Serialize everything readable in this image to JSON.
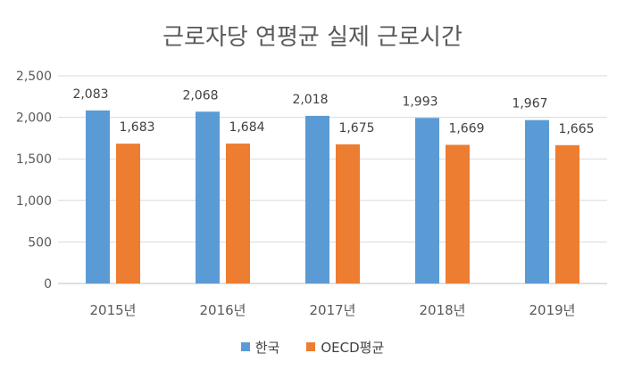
{
  "chart_data": {
    "type": "bar",
    "title": "근로자당 연평균 실제 근로시간",
    "categories": [
      "2015년",
      "2016년",
      "2017년",
      "2018년",
      "2019년"
    ],
    "series": [
      {
        "name": "한국",
        "color": "#5B9BD5",
        "values": [
          2083,
          2068,
          2018,
          1993,
          1967
        ],
        "labels": [
          "2,083",
          "2,068",
          "2,018",
          "1,993",
          "1,967"
        ]
      },
      {
        "name": "OECD평균",
        "color": "#ED7D31",
        "values": [
          1683,
          1684,
          1675,
          1669,
          1665
        ],
        "labels": [
          "1,683",
          "1,684",
          "1,675",
          "1,669",
          "1,665"
        ]
      }
    ],
    "ylim": [
      0,
      2500
    ],
    "yticks": [
      0,
      500,
      1000,
      1500,
      2000,
      2500
    ],
    "ytick_labels": [
      "0",
      "500",
      "1,000",
      "1,500",
      "2,000",
      "2,500"
    ],
    "grid": true,
    "legend_position": "bottom",
    "xlabel": "",
    "ylabel": ""
  }
}
